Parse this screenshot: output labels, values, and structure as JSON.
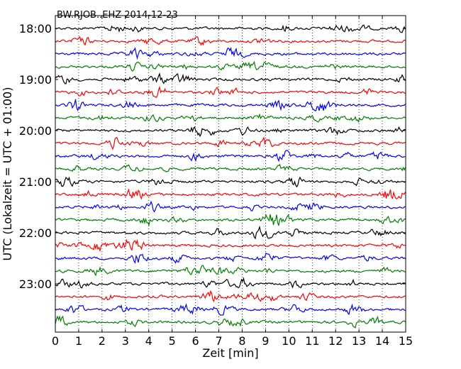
{
  "chart_data": {
    "type": "line",
    "title": "BW.RJOB..EHZ 2014-12-23",
    "xlabel": "Zeit  [min]",
    "ylabel": "UTC (Lokalzeit = UTC + 01:00)",
    "xlim": [
      0,
      15
    ],
    "x_ticks": [
      "0",
      "1",
      "2",
      "3",
      "4",
      "5",
      "6",
      "7",
      "8",
      "9",
      "10",
      "11",
      "12",
      "13",
      "14",
      "15"
    ],
    "y_ticks": [
      "18:00",
      "19:00",
      "20:00",
      "21:00",
      "22:00",
      "23:00"
    ],
    "traces_per_hour": 4,
    "trace_minutes": 15,
    "start_time": "18:00",
    "trace_count": 24,
    "trace_colors": [
      "#000000",
      "#ff0000",
      "#0000ff",
      "#007f00"
    ],
    "grid": "vertical dotted at each minute"
  }
}
